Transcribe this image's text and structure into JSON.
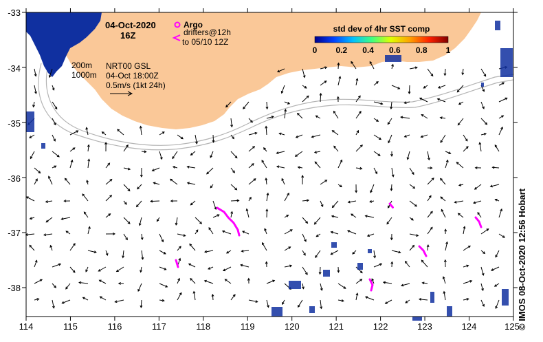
{
  "map": {
    "date": "04-Oct-2020",
    "hour": "16Z",
    "credit": "©  IMOS 08-Oct-2020 12:56 Hobart",
    "product": {
      "line1": "NRT00 GSL",
      "line2": "04-Oct 18:00Z",
      "line3": "0.5m/s (1kt 24h)"
    },
    "isobaths": [
      "200m",
      "1000m"
    ],
    "legend": {
      "argo_label": "Argo",
      "drifters_label": "drifters@12h",
      "drifters_sub": "to 05/10 12Z",
      "argo_color": "#ff00ff"
    },
    "colorbar": {
      "title": "std dev of 4hr SST comp",
      "ticks": [
        "0",
        "0.2",
        "0.4",
        "0.6",
        "0.8",
        "1"
      ],
      "colors": [
        "#00008b",
        "#0040ff",
        "#00c0ff",
        "#40ff80",
        "#e0ff00",
        "#ffa000",
        "#ff2000",
        "#800000"
      ]
    },
    "colors": {
      "land": "#fac898",
      "shelf": "#b4b4b4",
      "arrow": "#000000",
      "sst_patch": "#1030a0",
      "drifter": "#ff00ff"
    },
    "x_axis": {
      "lon_ticks": [
        "114",
        "115",
        "116",
        "117",
        "118",
        "119",
        "120",
        "121",
        "122",
        "123",
        "124",
        "125"
      ]
    },
    "y_axis": {
      "lat_ticks": [
        "-33",
        "-34",
        "-35",
        "-36",
        "-37",
        "-38"
      ]
    }
  }
}
